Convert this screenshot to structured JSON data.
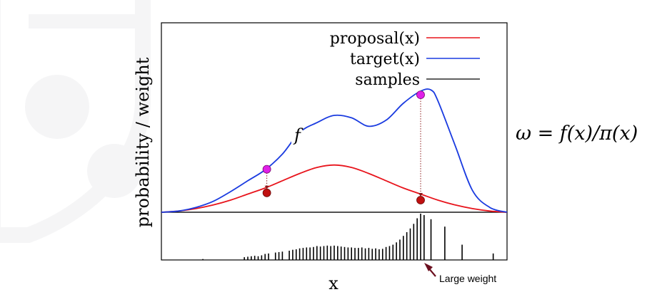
{
  "chart_data": {
    "type": "line",
    "title": "",
    "xlabel": "x",
    "ylabel": "probability / weight",
    "xlim": [
      0,
      1
    ],
    "ylim": [
      0,
      1
    ],
    "grid": false,
    "legend_position": "top-right",
    "series": [
      {
        "name": "proposal(x)",
        "color": "#e8141c",
        "x": [
          0.0,
          0.05,
          0.1,
          0.15,
          0.2,
          0.25,
          0.3,
          0.35,
          0.4,
          0.45,
          0.5,
          0.55,
          0.6,
          0.65,
          0.7,
          0.75,
          0.8,
          0.85,
          0.9,
          0.95,
          1.0
        ],
        "y": [
          0.0,
          0.01,
          0.03,
          0.06,
          0.1,
          0.15,
          0.2,
          0.26,
          0.32,
          0.37,
          0.39,
          0.37,
          0.32,
          0.26,
          0.2,
          0.15,
          0.1,
          0.06,
          0.03,
          0.01,
          0.0
        ]
      },
      {
        "name": "target(x)",
        "color": "#1a3be0",
        "x": [
          0.0,
          0.05,
          0.1,
          0.15,
          0.2,
          0.25,
          0.3,
          0.35,
          0.4,
          0.45,
          0.5,
          0.55,
          0.6,
          0.65,
          0.7,
          0.75,
          0.78,
          0.8,
          0.85,
          0.9,
          0.95,
          1.0
        ],
        "y": [
          0.0,
          0.01,
          0.04,
          0.09,
          0.17,
          0.26,
          0.35,
          0.48,
          0.66,
          0.74,
          0.8,
          0.78,
          0.71,
          0.76,
          0.9,
          1.0,
          1.01,
          0.92,
          0.55,
          0.18,
          0.04,
          0.0
        ]
      },
      {
        "name": "samples",
        "color": "#000000",
        "x": [],
        "y": []
      }
    ],
    "sample_points": [
      {
        "x": 0.305,
        "target": 0.355,
        "proposal": 0.16,
        "color_target": "#e020e8",
        "color_proposal": "#c01010"
      },
      {
        "x": 0.75,
        "target": 0.97,
        "proposal": 0.1,
        "color_target": "#e020e8",
        "color_proposal": "#c01010"
      }
    ],
    "weights": {
      "x": [
        0.12,
        0.24,
        0.25,
        0.26,
        0.27,
        0.28,
        0.29,
        0.3,
        0.31,
        0.33,
        0.34,
        0.35,
        0.37,
        0.38,
        0.39,
        0.4,
        0.41,
        0.42,
        0.43,
        0.44,
        0.45,
        0.46,
        0.47,
        0.48,
        0.49,
        0.5,
        0.51,
        0.52,
        0.53,
        0.54,
        0.55,
        0.56,
        0.57,
        0.58,
        0.59,
        0.6,
        0.61,
        0.62,
        0.63,
        0.64,
        0.65,
        0.66,
        0.67,
        0.68,
        0.69,
        0.7,
        0.71,
        0.72,
        0.73,
        0.74,
        0.75,
        0.76,
        0.78,
        0.82,
        0.87,
        0.96
      ],
      "y": [
        0.02,
        0.06,
        0.07,
        0.08,
        0.09,
        0.08,
        0.1,
        0.13,
        0.14,
        0.16,
        0.17,
        0.18,
        0.2,
        0.22,
        0.23,
        0.25,
        0.26,
        0.27,
        0.27,
        0.28,
        0.3,
        0.29,
        0.3,
        0.31,
        0.3,
        0.31,
        0.3,
        0.29,
        0.28,
        0.27,
        0.27,
        0.26,
        0.26,
        0.27,
        0.25,
        0.26,
        0.24,
        0.25,
        0.23,
        0.24,
        0.28,
        0.3,
        0.33,
        0.38,
        0.44,
        0.52,
        0.6,
        0.68,
        0.78,
        0.9,
        1.0,
        0.97,
        0.88,
        0.72,
        0.33,
        0.14
      ]
    },
    "annotations": {
      "f_label": "f",
      "large_weight": "Large weight"
    }
  },
  "formula": "ω = f(x)/π(x)"
}
